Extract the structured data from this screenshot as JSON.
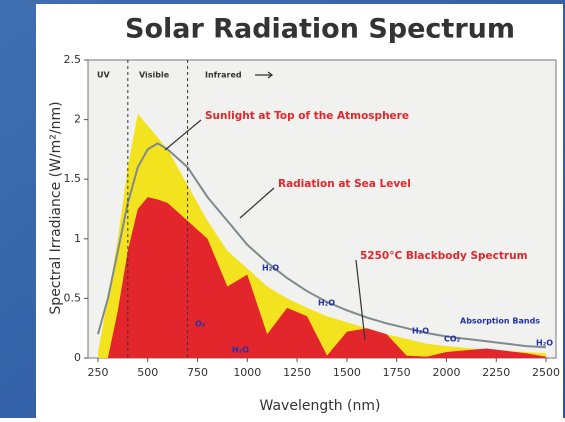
{
  "chart_data": {
    "type": "area",
    "title": "Solar Radiation Spectrum",
    "xlabel": "Wavelength (nm)",
    "ylabel": "Spectral Irradiance (W/m²/nm)",
    "x": [
      250,
      300,
      350,
      400,
      450,
      500,
      550,
      600,
      700,
      800,
      900,
      1000,
      1100,
      1200,
      1300,
      1400,
      1500,
      1600,
      1700,
      1800,
      1900,
      2000,
      2200,
      2400,
      2500
    ],
    "series": [
      {
        "name": "Sunlight at Top of the Atmosphere",
        "color": "#f3e21e",
        "fill": true,
        "values": [
          0.05,
          0.5,
          1.0,
          1.6,
          2.05,
          1.95,
          1.85,
          1.75,
          1.45,
          1.15,
          0.9,
          0.75,
          0.6,
          0.5,
          0.42,
          0.35,
          0.3,
          0.25,
          0.2,
          0.16,
          0.12,
          0.1,
          0.07,
          0.05,
          0.04
        ]
      },
      {
        "name": "Radiation at Sea Level",
        "color": "#e3262b",
        "fill": true,
        "values": [
          0,
          0,
          0.4,
          0.9,
          1.25,
          1.35,
          1.33,
          1.3,
          1.15,
          1.0,
          0.6,
          0.7,
          0.2,
          0.42,
          0.35,
          0.02,
          0.22,
          0.25,
          0.2,
          0.02,
          0.01,
          0.05,
          0.08,
          0.04,
          0.01
        ]
      },
      {
        "name": "5250°C Blackbody Spectrum",
        "color": "#7f8a8e",
        "fill": false,
        "values": [
          0.2,
          0.5,
          0.9,
          1.3,
          1.6,
          1.75,
          1.8,
          1.75,
          1.6,
          1.35,
          1.15,
          0.95,
          0.8,
          0.67,
          0.56,
          0.47,
          0.4,
          0.34,
          0.29,
          0.25,
          0.21,
          0.18,
          0.14,
          0.1,
          0.09
        ]
      }
    ],
    "region_boundaries": [
      400,
      700
    ],
    "annotations": [
      "UV",
      "Visible",
      "Infrared",
      "H₂O",
      "H₂O",
      "H₂O",
      "H₂O",
      "O₂",
      "H₂O",
      "CO₂",
      "Absorption Bands"
    ],
    "xlim": [
      200,
      2550
    ],
    "ylim": [
      0,
      2.5
    ],
    "xticks": [
      250,
      500,
      750,
      1000,
      1250,
      1500,
      1750,
      2000,
      2250,
      2500
    ],
    "yticks": [
      0,
      0.5,
      1,
      1.5,
      2,
      2.5
    ]
  }
}
